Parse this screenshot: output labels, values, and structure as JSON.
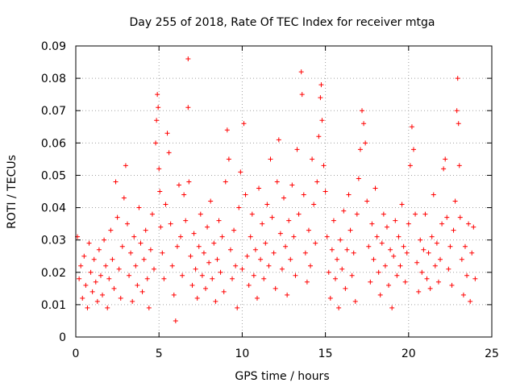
{
  "chart_data": {
    "type": "scatter",
    "title": "Day 255 of 2018, Rate Of TEC Index for receiver mtga",
    "xlabel": "GPS time / hours",
    "ylabel": "ROTI / TECUs",
    "xlim": [
      0,
      25
    ],
    "ylim": [
      0,
      0.09
    ],
    "xticks": [
      0,
      5,
      10,
      15,
      20,
      25
    ],
    "xtick_labels": [
      "0",
      "5",
      "10",
      "15",
      "20",
      "25"
    ],
    "yticks": [
      0,
      0.01,
      0.02,
      0.03,
      0.04,
      0.05,
      0.06,
      0.07,
      0.08,
      0.09
    ],
    "ytick_labels": [
      "0",
      "0.01",
      "0.02",
      "0.03",
      "0.04",
      "0.05",
      "0.06",
      "0.07",
      "0.08",
      "0.09"
    ],
    "grid": true,
    "marker": "+",
    "color": "#ff0000",
    "series": [
      {
        "points": [
          [
            0.1,
            0.031
          ],
          [
            0.2,
            0.018
          ],
          [
            0.3,
            0.022
          ],
          [
            0.4,
            0.012
          ],
          [
            0.5,
            0.025
          ],
          [
            0.6,
            0.016
          ],
          [
            0.7,
            0.009
          ],
          [
            0.8,
            0.029
          ],
          [
            0.9,
            0.02
          ],
          [
            1.0,
            0.014
          ],
          [
            1.1,
            0.024
          ],
          [
            1.2,
            0.017
          ],
          [
            1.3,
            0.011
          ],
          [
            1.4,
            0.027
          ],
          [
            1.5,
            0.019
          ],
          [
            1.6,
            0.013
          ],
          [
            1.7,
            0.03
          ],
          [
            1.8,
            0.022
          ],
          [
            1.9,
            0.009
          ],
          [
            2.0,
            0.018
          ],
          [
            2.1,
            0.033
          ],
          [
            2.2,
            0.024
          ],
          [
            2.3,
            0.015
          ],
          [
            2.4,
            0.048
          ],
          [
            2.5,
            0.037
          ],
          [
            2.6,
            0.021
          ],
          [
            2.7,
            0.012
          ],
          [
            2.8,
            0.028
          ],
          [
            2.9,
            0.043
          ],
          [
            3.0,
            0.053
          ],
          [
            3.1,
            0.035
          ],
          [
            3.2,
            0.019
          ],
          [
            3.3,
            0.026
          ],
          [
            3.4,
            0.011
          ],
          [
            3.5,
            0.031
          ],
          [
            3.6,
            0.022
          ],
          [
            3.7,
            0.016
          ],
          [
            3.8,
            0.04
          ],
          [
            3.9,
            0.029
          ],
          [
            4.0,
            0.014
          ],
          [
            4.1,
            0.024
          ],
          [
            4.2,
            0.033
          ],
          [
            4.3,
            0.018
          ],
          [
            4.4,
            0.009
          ],
          [
            4.5,
            0.027
          ],
          [
            4.6,
            0.038
          ],
          [
            4.7,
            0.021
          ],
          [
            4.8,
            0.06
          ],
          [
            4.85,
            0.067
          ],
          [
            4.9,
            0.075
          ],
          [
            4.95,
            0.071
          ],
          [
            5.0,
            0.052
          ],
          [
            5.05,
            0.045
          ],
          [
            5.1,
            0.034
          ],
          [
            5.2,
            0.026
          ],
          [
            5.3,
            0.018
          ],
          [
            5.4,
            0.041
          ],
          [
            5.5,
            0.063
          ],
          [
            5.6,
            0.057
          ],
          [
            5.7,
            0.035
          ],
          [
            5.8,
            0.022
          ],
          [
            5.9,
            0.013
          ],
          [
            6.0,
            0.005
          ],
          [
            6.1,
            0.028
          ],
          [
            6.2,
            0.047
          ],
          [
            6.3,
            0.031
          ],
          [
            6.4,
            0.019
          ],
          [
            6.5,
            0.044
          ],
          [
            6.6,
            0.036
          ],
          [
            6.75,
            0.086
          ],
          [
            6.75,
            0.071
          ],
          [
            6.8,
            0.048
          ],
          [
            6.9,
            0.025
          ],
          [
            7.0,
            0.016
          ],
          [
            7.1,
            0.032
          ],
          [
            7.2,
            0.021
          ],
          [
            7.3,
            0.012
          ],
          [
            7.4,
            0.028
          ],
          [
            7.5,
            0.038
          ],
          [
            7.6,
            0.019
          ],
          [
            7.7,
            0.026
          ],
          [
            7.8,
            0.015
          ],
          [
            7.9,
            0.034
          ],
          [
            8.0,
            0.023
          ],
          [
            8.1,
            0.042
          ],
          [
            8.2,
            0.018
          ],
          [
            8.3,
            0.029
          ],
          [
            8.4,
            0.011
          ],
          [
            8.5,
            0.024
          ],
          [
            8.6,
            0.036
          ],
          [
            8.7,
            0.02
          ],
          [
            8.8,
            0.031
          ],
          [
            8.9,
            0.014
          ],
          [
            9.0,
            0.048
          ],
          [
            9.1,
            0.064
          ],
          [
            9.2,
            0.055
          ],
          [
            9.3,
            0.027
          ],
          [
            9.4,
            0.018
          ],
          [
            9.5,
            0.033
          ],
          [
            9.6,
            0.022
          ],
          [
            9.7,
            0.009
          ],
          [
            9.8,
            0.04
          ],
          [
            9.9,
            0.051
          ],
          [
            10.0,
            0.021
          ],
          [
            10.1,
            0.066
          ],
          [
            10.2,
            0.044
          ],
          [
            10.3,
            0.025
          ],
          [
            10.4,
            0.016
          ],
          [
            10.5,
            0.031
          ],
          [
            10.6,
            0.038
          ],
          [
            10.7,
            0.019
          ],
          [
            10.8,
            0.027
          ],
          [
            10.9,
            0.012
          ],
          [
            11.0,
            0.046
          ],
          [
            11.1,
            0.024
          ],
          [
            11.2,
            0.035
          ],
          [
            11.3,
            0.018
          ],
          [
            11.4,
            0.029
          ],
          [
            11.5,
            0.041
          ],
          [
            11.6,
            0.022
          ],
          [
            11.7,
            0.055
          ],
          [
            11.8,
            0.037
          ],
          [
            11.9,
            0.026
          ],
          [
            12.0,
            0.015
          ],
          [
            12.1,
            0.048
          ],
          [
            12.2,
            0.061
          ],
          [
            12.3,
            0.032
          ],
          [
            12.4,
            0.021
          ],
          [
            12.5,
            0.043
          ],
          [
            12.6,
            0.028
          ],
          [
            12.7,
            0.013
          ],
          [
            12.8,
            0.036
          ],
          [
            12.9,
            0.024
          ],
          [
            13.0,
            0.047
          ],
          [
            13.1,
            0.031
          ],
          [
            13.2,
            0.019
          ],
          [
            13.3,
            0.058
          ],
          [
            13.4,
            0.038
          ],
          [
            13.55,
            0.082
          ],
          [
            13.6,
            0.075
          ],
          [
            13.7,
            0.044
          ],
          [
            13.8,
            0.026
          ],
          [
            13.9,
            0.017
          ],
          [
            14.0,
            0.033
          ],
          [
            14.1,
            0.022
          ],
          [
            14.2,
            0.055
          ],
          [
            14.3,
            0.041
          ],
          [
            14.4,
            0.029
          ],
          [
            14.5,
            0.048
          ],
          [
            14.6,
            0.062
          ],
          [
            14.7,
            0.074
          ],
          [
            14.75,
            0.078
          ],
          [
            14.8,
            0.067
          ],
          [
            14.9,
            0.053
          ],
          [
            15.0,
            0.045
          ],
          [
            15.1,
            0.031
          ],
          [
            15.2,
            0.02
          ],
          [
            15.3,
            0.012
          ],
          [
            15.4,
            0.027
          ],
          [
            15.5,
            0.036
          ],
          [
            15.6,
            0.018
          ],
          [
            15.7,
            0.024
          ],
          [
            15.8,
            0.009
          ],
          [
            15.9,
            0.03
          ],
          [
            16.0,
            0.021
          ],
          [
            16.1,
            0.039
          ],
          [
            16.2,
            0.015
          ],
          [
            16.3,
            0.027
          ],
          [
            16.4,
            0.044
          ],
          [
            16.5,
            0.033
          ],
          [
            16.6,
            0.019
          ],
          [
            16.7,
            0.026
          ],
          [
            16.8,
            0.011
          ],
          [
            16.9,
            0.038
          ],
          [
            17.0,
            0.049
          ],
          [
            17.1,
            0.058
          ],
          [
            17.2,
            0.07
          ],
          [
            17.3,
            0.066
          ],
          [
            17.4,
            0.06
          ],
          [
            17.5,
            0.042
          ],
          [
            17.6,
            0.028
          ],
          [
            17.7,
            0.017
          ],
          [
            17.8,
            0.035
          ],
          [
            17.9,
            0.024
          ],
          [
            18.0,
            0.046
          ],
          [
            18.1,
            0.031
          ],
          [
            18.2,
            0.02
          ],
          [
            18.3,
            0.013
          ],
          [
            18.4,
            0.029
          ],
          [
            18.5,
            0.038
          ],
          [
            18.6,
            0.022
          ],
          [
            18.7,
            0.034
          ],
          [
            18.8,
            0.016
          ],
          [
            18.9,
            0.027
          ],
          [
            19.0,
            0.009
          ],
          [
            19.1,
            0.025
          ],
          [
            19.2,
            0.036
          ],
          [
            19.3,
            0.019
          ],
          [
            19.4,
            0.031
          ],
          [
            19.5,
            0.022
          ],
          [
            19.6,
            0.041
          ],
          [
            19.7,
            0.028
          ],
          [
            19.8,
            0.017
          ],
          [
            19.9,
            0.026
          ],
          [
            20.0,
            0.035
          ],
          [
            20.1,
            0.053
          ],
          [
            20.2,
            0.065
          ],
          [
            20.3,
            0.058
          ],
          [
            20.4,
            0.038
          ],
          [
            20.5,
            0.023
          ],
          [
            20.6,
            0.014
          ],
          [
            20.7,
            0.03
          ],
          [
            20.8,
            0.02
          ],
          [
            20.9,
            0.027
          ],
          [
            21.0,
            0.038
          ],
          [
            21.1,
            0.018
          ],
          [
            21.2,
            0.026
          ],
          [
            21.3,
            0.015
          ],
          [
            21.4,
            0.031
          ],
          [
            21.5,
            0.044
          ],
          [
            21.6,
            0.022
          ],
          [
            21.7,
            0.029
          ],
          [
            21.8,
            0.017
          ],
          [
            21.9,
            0.024
          ],
          [
            22.0,
            0.035
          ],
          [
            22.1,
            0.052
          ],
          [
            22.2,
            0.055
          ],
          [
            22.3,
            0.037
          ],
          [
            22.4,
            0.021
          ],
          [
            22.5,
            0.028
          ],
          [
            22.6,
            0.016
          ],
          [
            22.7,
            0.033
          ],
          [
            22.8,
            0.042
          ],
          [
            22.9,
            0.07
          ],
          [
            22.95,
            0.08
          ],
          [
            23.0,
            0.066
          ],
          [
            23.05,
            0.053
          ],
          [
            23.1,
            0.037
          ],
          [
            23.2,
            0.024
          ],
          [
            23.3,
            0.013
          ],
          [
            23.4,
            0.028
          ],
          [
            23.5,
            0.019
          ],
          [
            23.6,
            0.035
          ],
          [
            23.7,
            0.011
          ],
          [
            23.8,
            0.026
          ],
          [
            23.9,
            0.034
          ],
          [
            24.0,
            0.018
          ]
        ]
      }
    ]
  }
}
